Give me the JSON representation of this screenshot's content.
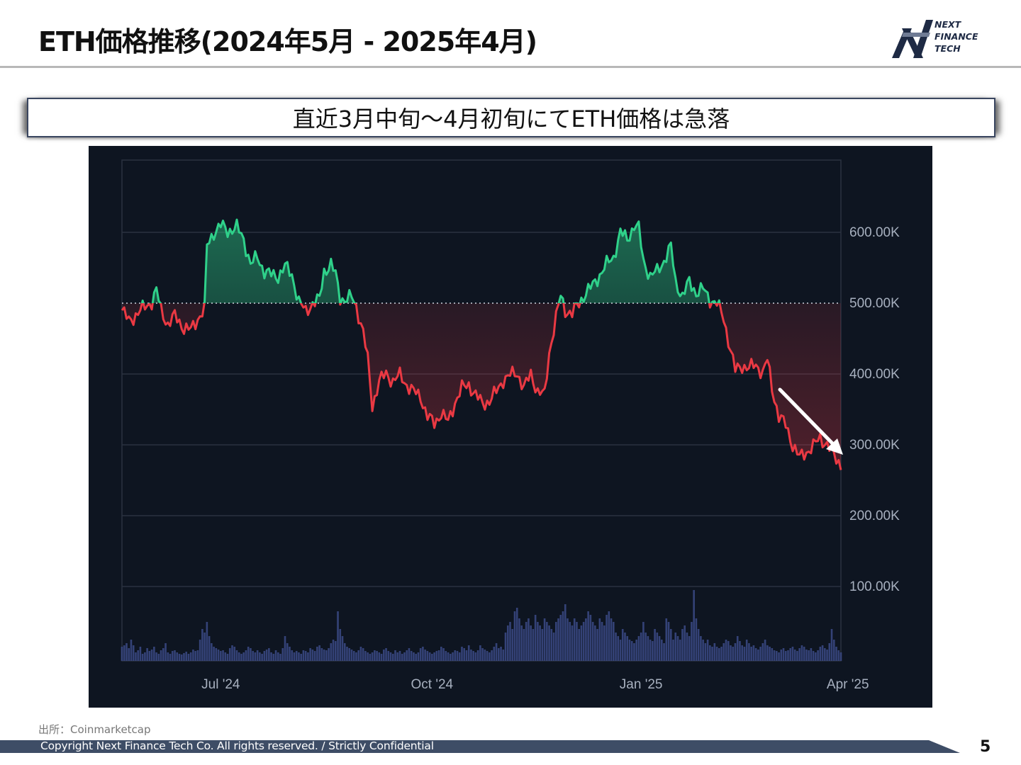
{
  "slide": {
    "title": "ETH価格推移(2024年5月 - 2025年4月)",
    "banner": "直近3月中旬～4月初旬にてETH価格は急落",
    "source": "出所：Coinmarketcap",
    "copyright": "Copyright Next Finance Tech Co. All rights reserved. / Strictly Confidential",
    "page_number": "5"
  },
  "logo": {
    "line1": "NEXT",
    "line2": "FINANCE",
    "line3": "TECH"
  },
  "colors": {
    "chart_bg": "#0e1521",
    "up": "#2fd18a",
    "down": "#ea3943",
    "grid": "#2a3240",
    "baseline": "#cfd6e0",
    "volume": "#3b4a86",
    "axis_text": "#a7b0bf",
    "footer_bar": "#3e4d66"
  },
  "chart_data": {
    "type": "area",
    "baseline": 500000,
    "ylim": [
      0,
      700000
    ],
    "y_ticks": [
      100000,
      200000,
      300000,
      400000,
      500000,
      600000
    ],
    "y_tick_labels": [
      "100.00K",
      "200.00K",
      "300.00K",
      "400.00K",
      "500.00K",
      "600.00K"
    ],
    "x_tick_labels": [
      "Jul '24",
      "Oct '24",
      "Jan '25",
      "Apr '25"
    ],
    "x_tick_indices": [
      43,
      135,
      226,
      316
    ],
    "start": "2024-05-01",
    "grid": true,
    "annotation": "white arrow pointing down-right near the most recent prices",
    "price_keypoints": [
      [
        0,
        490000
      ],
      [
        3,
        475000
      ],
      [
        6,
        483000
      ],
      [
        10,
        495000
      ],
      [
        13,
        502000
      ],
      [
        15,
        518000
      ],
      [
        17,
        490000
      ],
      [
        20,
        470000
      ],
      [
        23,
        482000
      ],
      [
        27,
        465000
      ],
      [
        30,
        462000
      ],
      [
        33,
        478000
      ],
      [
        36,
        492000
      ],
      [
        37,
        580000
      ],
      [
        40,
        600000
      ],
      [
        43,
        610000
      ],
      [
        46,
        602000
      ],
      [
        50,
        607000
      ],
      [
        53,
        590000
      ],
      [
        56,
        555000
      ],
      [
        59,
        565000
      ],
      [
        62,
        545000
      ],
      [
        65,
        540000
      ],
      [
        68,
        538000
      ],
      [
        71,
        552000
      ],
      [
        74,
        540000
      ],
      [
        77,
        502000
      ],
      [
        80,
        488000
      ],
      [
        83,
        500000
      ],
      [
        86,
        505000
      ],
      [
        88,
        545000
      ],
      [
        91,
        555000
      ],
      [
        93,
        540000
      ],
      [
        95,
        508000
      ],
      [
        97,
        505000
      ],
      [
        100,
        508000
      ],
      [
        102,
        495000
      ],
      [
        105,
        460000
      ],
      [
        107,
        420000
      ],
      [
        109,
        355000
      ],
      [
        112,
        390000
      ],
      [
        115,
        400000
      ],
      [
        118,
        390000
      ],
      [
        121,
        398000
      ],
      [
        124,
        385000
      ],
      [
        127,
        375000
      ],
      [
        130,
        368000
      ],
      [
        133,
        340000
      ],
      [
        136,
        330000
      ],
      [
        139,
        345000
      ],
      [
        142,
        332000
      ],
      [
        145,
        360000
      ],
      [
        148,
        380000
      ],
      [
        151,
        385000
      ],
      [
        154,
        370000
      ],
      [
        157,
        358000
      ],
      [
        160,
        362000
      ],
      [
        163,
        375000
      ],
      [
        166,
        392000
      ],
      [
        169,
        398000
      ],
      [
        172,
        402000
      ],
      [
        175,
        380000
      ],
      [
        178,
        400000
      ],
      [
        181,
        375000
      ],
      [
        184,
        370000
      ],
      [
        186,
        430000
      ],
      [
        189,
        480000
      ],
      [
        191,
        510000
      ],
      [
        193,
        490000
      ],
      [
        196,
        485000
      ],
      [
        199,
        500000
      ],
      [
        202,
        515000
      ],
      [
        205,
        525000
      ],
      [
        208,
        540000
      ],
      [
        211,
        555000
      ],
      [
        214,
        565000
      ],
      [
        217,
        600000
      ],
      [
        220,
        590000
      ],
      [
        223,
        610000
      ],
      [
        225,
        605000
      ],
      [
        227,
        560000
      ],
      [
        230,
        538000
      ],
      [
        233,
        545000
      ],
      [
        236,
        560000
      ],
      [
        239,
        580000
      ],
      [
        241,
        530000
      ],
      [
        244,
        510000
      ],
      [
        247,
        530000
      ],
      [
        250,
        515000
      ],
      [
        253,
        520000
      ],
      [
        256,
        505000
      ],
      [
        259,
        500000
      ],
      [
        262,
        478000
      ],
      [
        264,
        448000
      ],
      [
        267,
        405000
      ],
      [
        270,
        412000
      ],
      [
        273,
        408000
      ],
      [
        276,
        413000
      ],
      [
        279,
        402000
      ],
      [
        281,
        420000
      ],
      [
        283,
        380000
      ],
      [
        286,
        340000
      ],
      [
        289,
        328000
      ],
      [
        292,
        300000
      ],
      [
        295,
        282000
      ],
      [
        298,
        290000
      ],
      [
        301,
        298000
      ],
      [
        304,
        310000
      ],
      [
        307,
        300000
      ],
      [
        310,
        285000
      ],
      [
        313,
        272000
      ],
      [
        316,
        250000
      ],
      [
        318,
        225000
      ],
      [
        319,
        215000
      ],
      [
        321,
        240000
      ],
      [
        323,
        225000
      ]
    ],
    "volume_relative": [
      0.2,
      0.22,
      0.25,
      0.18,
      0.3,
      0.22,
      0.12,
      0.15,
      0.2,
      0.1,
      0.12,
      0.18,
      0.14,
      0.16,
      0.2,
      0.12,
      0.1,
      0.15,
      0.18,
      0.25,
      0.12,
      0.1,
      0.14,
      0.15,
      0.12,
      0.1,
      0.09,
      0.11,
      0.13,
      0.1,
      0.12,
      0.16,
      0.14,
      0.15,
      0.3,
      0.45,
      0.4,
      0.55,
      0.35,
      0.25,
      0.2,
      0.18,
      0.16,
      0.14,
      0.15,
      0.12,
      0.1,
      0.18,
      0.22,
      0.2,
      0.15,
      0.12,
      0.1,
      0.12,
      0.15,
      0.2,
      0.18,
      0.14,
      0.12,
      0.15,
      0.12,
      0.1,
      0.14,
      0.16,
      0.18,
      0.12,
      0.1,
      0.15,
      0.12,
      0.1,
      0.18,
      0.35,
      0.25,
      0.2,
      0.15,
      0.12,
      0.14,
      0.12,
      0.1,
      0.15,
      0.14,
      0.12,
      0.18,
      0.16,
      0.14,
      0.2,
      0.22,
      0.18,
      0.16,
      0.15,
      0.18,
      0.25,
      0.3,
      0.28,
      0.7,
      0.45,
      0.35,
      0.25,
      0.2,
      0.18,
      0.16,
      0.14,
      0.12,
      0.15,
      0.2,
      0.18,
      0.14,
      0.12,
      0.1,
      0.12,
      0.15,
      0.14,
      0.12,
      0.1,
      0.16,
      0.18,
      0.14,
      0.12,
      0.1,
      0.15,
      0.12,
      0.14,
      0.1,
      0.12,
      0.15,
      0.18,
      0.14,
      0.12,
      0.1,
      0.12,
      0.18,
      0.2,
      0.16,
      0.14,
      0.12,
      0.1,
      0.12,
      0.14,
      0.15,
      0.2,
      0.18,
      0.14,
      0.12,
      0.1,
      0.12,
      0.15,
      0.14,
      0.12,
      0.2,
      0.18,
      0.15,
      0.22,
      0.16,
      0.14,
      0.12,
      0.15,
      0.22,
      0.18,
      0.16,
      0.14,
      0.12,
      0.15,
      0.2,
      0.25,
      0.18,
      0.2,
      0.16,
      0.4,
      0.5,
      0.55,
      0.45,
      0.7,
      0.75,
      0.6,
      0.5,
      0.45,
      0.55,
      0.6,
      0.5,
      0.45,
      0.65,
      0.55,
      0.5,
      0.45,
      0.6,
      0.55,
      0.5,
      0.45,
      0.4,
      0.55,
      0.6,
      0.65,
      0.7,
      0.8,
      0.6,
      0.55,
      0.5,
      0.6,
      0.55,
      0.45,
      0.5,
      0.55,
      0.6,
      0.7,
      0.65,
      0.55,
      0.5,
      0.45,
      0.6,
      0.55,
      0.5,
      0.65,
      0.7,
      0.6,
      0.55,
      0.4,
      0.35,
      0.3,
      0.45,
      0.4,
      0.35,
      0.3,
      0.28,
      0.25,
      0.3,
      0.35,
      0.4,
      0.55,
      0.4,
      0.35,
      0.3,
      0.28,
      0.45,
      0.4,
      0.35,
      0.3,
      0.25,
      0.6,
      0.55,
      0.45,
      0.3,
      0.4,
      0.35,
      0.3,
      0.45,
      0.5,
      0.4,
      0.35,
      0.55,
      1.0,
      0.6,
      0.45,
      0.35,
      0.3,
      0.25,
      0.3,
      0.22,
      0.2,
      0.25,
      0.2,
      0.18,
      0.2,
      0.25,
      0.3,
      0.28,
      0.22,
      0.2,
      0.25,
      0.35,
      0.28,
      0.22,
      0.2,
      0.3,
      0.25,
      0.2,
      0.22,
      0.18,
      0.16,
      0.2,
      0.25,
      0.3,
      0.22,
      0.2,
      0.18,
      0.15,
      0.14,
      0.12,
      0.16,
      0.18,
      0.14,
      0.15,
      0.18,
      0.2,
      0.16,
      0.14,
      0.18,
      0.22,
      0.2,
      0.16,
      0.15,
      0.18,
      0.14,
      0.12,
      0.15,
      0.2,
      0.22,
      0.18,
      0.16,
      0.25,
      0.45,
      0.3,
      0.2,
      0.15,
      0.12
    ]
  }
}
